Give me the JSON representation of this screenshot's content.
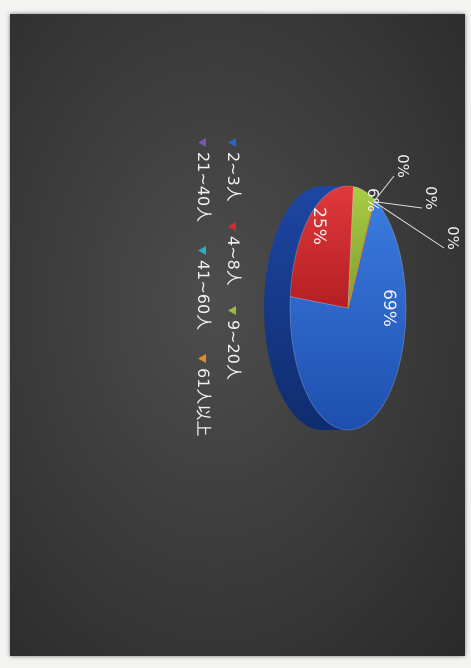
{
  "chart_data": {
    "type": "pie",
    "style": "3d",
    "orientation": "rotated-90-clockwise",
    "slices": [
      {
        "label": "2~3人",
        "value": 69,
        "display": "69%",
        "color": "#2a63c9"
      },
      {
        "label": "4~8人",
        "value": 25,
        "display": "25%",
        "color": "#d62a2e"
      },
      {
        "label": "9~20人",
        "value": 6,
        "display": "6%",
        "color": "#9bbd3c"
      },
      {
        "label": "21~40人",
        "value": 0,
        "display": "0%",
        "color": "#7a54b0"
      },
      {
        "label": "41~60人",
        "value": 0,
        "display": "0%",
        "color": "#2fa9c9"
      },
      {
        "label": "61人以上",
        "value": 0,
        "display": "0%",
        "color": "#e58a23"
      }
    ],
    "legend_position": "bottom"
  }
}
